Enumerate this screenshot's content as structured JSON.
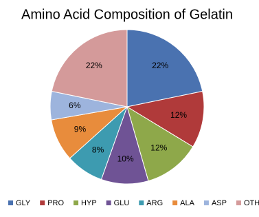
{
  "chart_data": {
    "type": "pie",
    "title": "Amino Acid Composition of Gelatin",
    "categories": [
      "GLY",
      "PRO",
      "HYP",
      "GLU",
      "ARG",
      "ALA",
      "ASP",
      "OTHER"
    ],
    "values": [
      22,
      12,
      12,
      10,
      8,
      9,
      6,
      22
    ],
    "value_labels": [
      "22%",
      "12%",
      "12%",
      "10%",
      "8%",
      "9%",
      "6%",
      "22%"
    ],
    "colors": [
      "#4a72b0",
      "#b03a3a",
      "#8ea84a",
      "#6f5395",
      "#3d9bb0",
      "#e88c3c",
      "#9db4dd",
      "#d49a9a"
    ],
    "legend": "bottom"
  }
}
